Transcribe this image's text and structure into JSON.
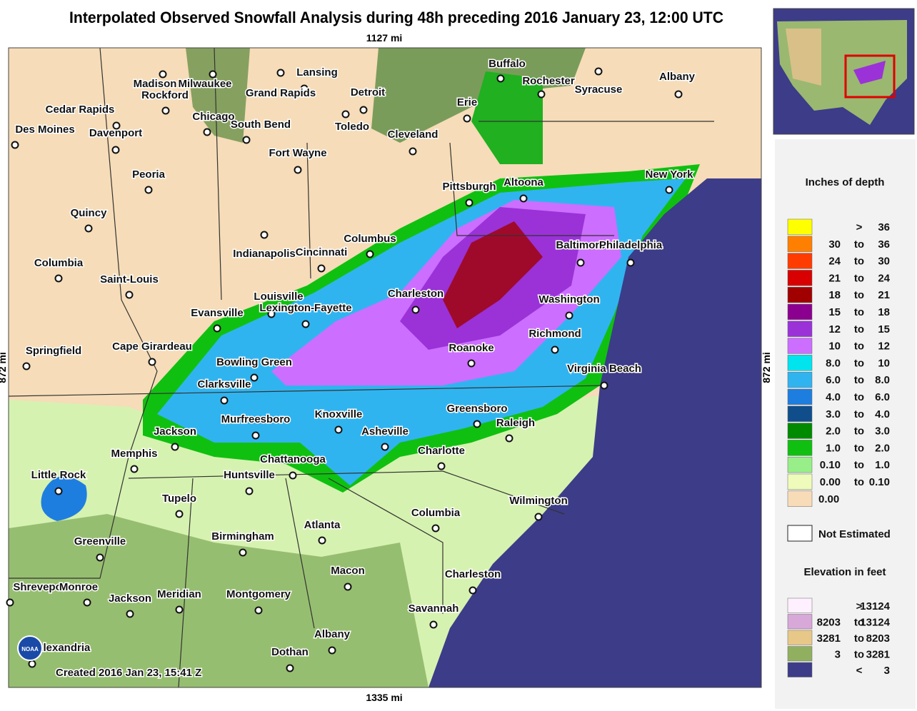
{
  "header": {
    "title": "Interpolated Observed Snowfall Analysis during 48h preceding 2016 January 23, 12:00 UTC"
  },
  "map": {
    "scale_top": "1127 mi",
    "scale_bottom": "1335 mi",
    "scale_left": "872 mi",
    "scale_right": "872 mi",
    "credit": "Created 2016 Jan 23, 15:41 Z",
    "logo": "NOAA",
    "cities": [
      {
        "name": "Buffalo"
      },
      {
        "name": "Rochester"
      },
      {
        "name": "Syracuse"
      },
      {
        "name": "Albany"
      },
      {
        "name": "Lansing"
      },
      {
        "name": "Madison"
      },
      {
        "name": "Milwaukee"
      },
      {
        "name": "Rockford"
      },
      {
        "name": "Grand Rapids"
      },
      {
        "name": "Detroit"
      },
      {
        "name": "Erie"
      },
      {
        "name": "Cedar Rapids"
      },
      {
        "name": "Chicago"
      },
      {
        "name": "South Bend"
      },
      {
        "name": "Toledo"
      },
      {
        "name": "Cleveland"
      },
      {
        "name": "Des Moines"
      },
      {
        "name": "Davenport"
      },
      {
        "name": "Fort Wayne"
      },
      {
        "name": "Peoria"
      },
      {
        "name": "Pittsburgh"
      },
      {
        "name": "Altoona"
      },
      {
        "name": "New York"
      },
      {
        "name": "Quincy"
      },
      {
        "name": "Columbus"
      },
      {
        "name": "Indianapolis"
      },
      {
        "name": "Cincinnati"
      },
      {
        "name": "Baltimore"
      },
      {
        "name": "Philadelphia"
      },
      {
        "name": "Columbia"
      },
      {
        "name": "Saint-Louis"
      },
      {
        "name": "Louisville"
      },
      {
        "name": "Charleston"
      },
      {
        "name": "Washington"
      },
      {
        "name": "Evansville"
      },
      {
        "name": "Lexington-Fayette"
      },
      {
        "name": "Richmond"
      },
      {
        "name": "Cape Girardeau"
      },
      {
        "name": "Springfield"
      },
      {
        "name": "Roanoke"
      },
      {
        "name": "Bowling Green"
      },
      {
        "name": "Virginia Beach"
      },
      {
        "name": "Clarksville"
      },
      {
        "name": "Greensboro"
      },
      {
        "name": "Murfreesboro"
      },
      {
        "name": "Knoxville"
      },
      {
        "name": "Raleigh"
      },
      {
        "name": "Jackson"
      },
      {
        "name": "Asheville"
      },
      {
        "name": "Memphis"
      },
      {
        "name": "Charlotte"
      },
      {
        "name": "Chattanooga"
      },
      {
        "name": "Little Rock"
      },
      {
        "name": "Huntsville"
      },
      {
        "name": "Tupelo"
      },
      {
        "name": "Wilmington"
      },
      {
        "name": "Columbia"
      },
      {
        "name": "Atlanta"
      },
      {
        "name": "Birmingham"
      },
      {
        "name": "Greenville"
      },
      {
        "name": "Macon"
      },
      {
        "name": "Charleston"
      },
      {
        "name": "Shreveport"
      },
      {
        "name": "Monroe"
      },
      {
        "name": "Jackson"
      },
      {
        "name": "Meridian"
      },
      {
        "name": "Montgomery"
      },
      {
        "name": "Savannah"
      },
      {
        "name": "Albany"
      },
      {
        "name": "Dothan"
      },
      {
        "name": "Alexandria"
      }
    ]
  },
  "legend": {
    "title": "Inches of depth",
    "rows": [
      {
        "cells": [
          ">",
          "36"
        ],
        "color": "#ffff00"
      },
      {
        "cells": [
          "30",
          "to",
          "36"
        ],
        "color": "#ff8000"
      },
      {
        "cells": [
          "24",
          "to",
          "30"
        ],
        "color": "#ff3c00"
      },
      {
        "cells": [
          "21",
          "to",
          "24"
        ],
        "color": "#d80000"
      },
      {
        "cells": [
          "18",
          "to",
          "21"
        ],
        "color": "#a00000"
      },
      {
        "cells": [
          "15",
          "to",
          "18"
        ],
        "color": "#8c0090"
      },
      {
        "cells": [
          "12",
          "to",
          "15"
        ],
        "color": "#9a32d8"
      },
      {
        "cells": [
          "10",
          "to",
          "12"
        ],
        "color": "#cc6eff"
      },
      {
        "cells": [
          "8.0",
          "to",
          "10"
        ],
        "color": "#00e4ee"
      },
      {
        "cells": [
          "6.0",
          "to",
          "8.0"
        ],
        "color": "#30b4f0"
      },
      {
        "cells": [
          "4.0",
          "to",
          "6.0"
        ],
        "color": "#1e7ee0"
      },
      {
        "cells": [
          "3.0",
          "to",
          "4.0"
        ],
        "color": "#104e8b"
      },
      {
        "cells": [
          "2.0",
          "to",
          "3.0"
        ],
        "color": "#008a00"
      },
      {
        "cells": [
          "1.0",
          "to",
          "2.0"
        ],
        "color": "#10c010"
      },
      {
        "cells": [
          "0.10",
          "to",
          "1.0"
        ],
        "color": "#98ee88"
      },
      {
        "cells": [
          "0.00",
          "to",
          "0.10"
        ],
        "color": "#eefbbb"
      },
      {
        "cells": [
          "0.00"
        ],
        "color": "#f8dcb8"
      }
    ],
    "not_estimated": "Not Estimated",
    "elevation_title": "Elevation in feet",
    "elevation_rows": [
      {
        "cells": [
          ">",
          "13124"
        ],
        "color": "#fff0ff"
      },
      {
        "cells": [
          "8203",
          "to",
          "13124"
        ],
        "color": "#d8a8d8"
      },
      {
        "cells": [
          "3281",
          "to",
          "8203"
        ],
        "color": "#e8c888"
      },
      {
        "cells": [
          "3",
          "to",
          "3281"
        ],
        "color": "#90b060"
      },
      {
        "cells": [
          "<",
          "3"
        ],
        "color": "#3c3c88"
      }
    ]
  }
}
